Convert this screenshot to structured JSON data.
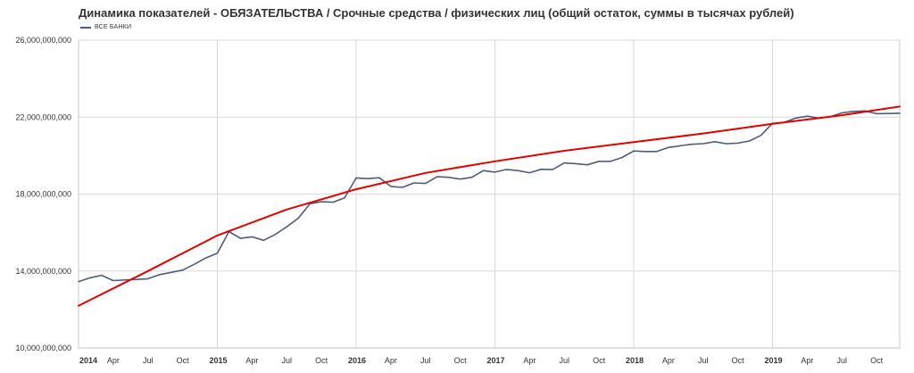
{
  "chart_data": {
    "type": "line",
    "title": "Динамика показателей - ОБЯЗАТЕЛЬСТВА / Срочные средства / физических лиц (общий остаток, суммы в тысячах рублей)",
    "xlabel": "",
    "ylabel": "",
    "ylim": [
      10000000000,
      26000000000
    ],
    "yticks": [
      10000000000,
      14000000000,
      18000000000,
      22000000000,
      26000000000
    ],
    "ytick_labels": [
      "10,000,000,000",
      "14,000,000,000",
      "18,000,000,000",
      "22,000,000,000",
      "26,000,000,000"
    ],
    "xlim": [
      "2014-01",
      "2019-12"
    ],
    "xtick_labels": [
      "2014",
      "Apr",
      "Jul",
      "Oct",
      "2015",
      "Apr",
      "Jul",
      "Oct",
      "2016",
      "Apr",
      "Jul",
      "Oct",
      "2017",
      "Apr",
      "Jul",
      "Oct",
      "2018",
      "Apr",
      "Jul",
      "Oct",
      "2019",
      "Apr",
      "Jul",
      "Oct"
    ],
    "grid": {
      "vertical_at_years": true,
      "horizontal": true
    },
    "legend_position": "top-left",
    "series": [
      {
        "name": "ВСЕ БАНКИ",
        "color": "#4e5d78",
        "x": [
          "2014-01",
          "2014-02",
          "2014-03",
          "2014-04",
          "2014-05",
          "2014-06",
          "2014-07",
          "2014-08",
          "2014-09",
          "2014-10",
          "2014-11",
          "2014-12",
          "2015-01",
          "2015-02",
          "2015-03",
          "2015-04",
          "2015-05",
          "2015-06",
          "2015-07",
          "2015-08",
          "2015-09",
          "2015-10",
          "2015-11",
          "2015-12",
          "2016-01",
          "2016-02",
          "2016-03",
          "2016-04",
          "2016-05",
          "2016-06",
          "2016-07",
          "2016-08",
          "2016-09",
          "2016-10",
          "2016-11",
          "2016-12",
          "2017-01",
          "2017-02",
          "2017-03",
          "2017-04",
          "2017-05",
          "2017-06",
          "2017-07",
          "2017-08",
          "2017-09",
          "2017-10",
          "2017-11",
          "2017-12",
          "2018-01",
          "2018-02",
          "2018-03",
          "2018-04",
          "2018-05",
          "2018-06",
          "2018-07",
          "2018-08",
          "2018-09",
          "2018-10",
          "2018-11",
          "2018-12",
          "2019-01",
          "2019-02",
          "2019-03",
          "2019-04",
          "2019-05",
          "2019-06",
          "2019-07",
          "2019-08",
          "2019-09",
          "2019-10",
          "2019-11",
          "2019-12"
        ],
        "values": [
          13450000000,
          13650000000,
          13780000000,
          13500000000,
          13540000000,
          13560000000,
          13600000000,
          13810000000,
          13930000000,
          14050000000,
          14350000000,
          14680000000,
          14930000000,
          16050000000,
          15700000000,
          15780000000,
          15600000000,
          15900000000,
          16300000000,
          16750000000,
          17500000000,
          17600000000,
          17580000000,
          17800000000,
          18840000000,
          18800000000,
          18850000000,
          18400000000,
          18350000000,
          18580000000,
          18550000000,
          18900000000,
          18870000000,
          18780000000,
          18870000000,
          19220000000,
          19140000000,
          19280000000,
          19220000000,
          19110000000,
          19290000000,
          19280000000,
          19620000000,
          19580000000,
          19520000000,
          19700000000,
          19700000000,
          19900000000,
          20240000000,
          20210000000,
          20210000000,
          20420000000,
          20510000000,
          20590000000,
          20620000000,
          20720000000,
          20620000000,
          20650000000,
          20760000000,
          21050000000,
          21680000000,
          21720000000,
          21950000000,
          22050000000,
          21950000000,
          22020000000,
          22220000000,
          22300000000,
          22320000000,
          22180000000,
          22190000000,
          22200000000
        ]
      },
      {
        "name": "",
        "color": "#e00000",
        "x": [
          "2014-01",
          "2014-07",
          "2015-01",
          "2015-07",
          "2016-01",
          "2016-07",
          "2017-01",
          "2017-07",
          "2018-01",
          "2018-07",
          "2019-01",
          "2019-07",
          "2019-12"
        ],
        "values": [
          12200000000,
          14000000000,
          15850000000,
          17200000000,
          18250000000,
          19100000000,
          19700000000,
          20250000000,
          20700000000,
          21150000000,
          21650000000,
          22100000000,
          22550000000
        ]
      }
    ]
  }
}
